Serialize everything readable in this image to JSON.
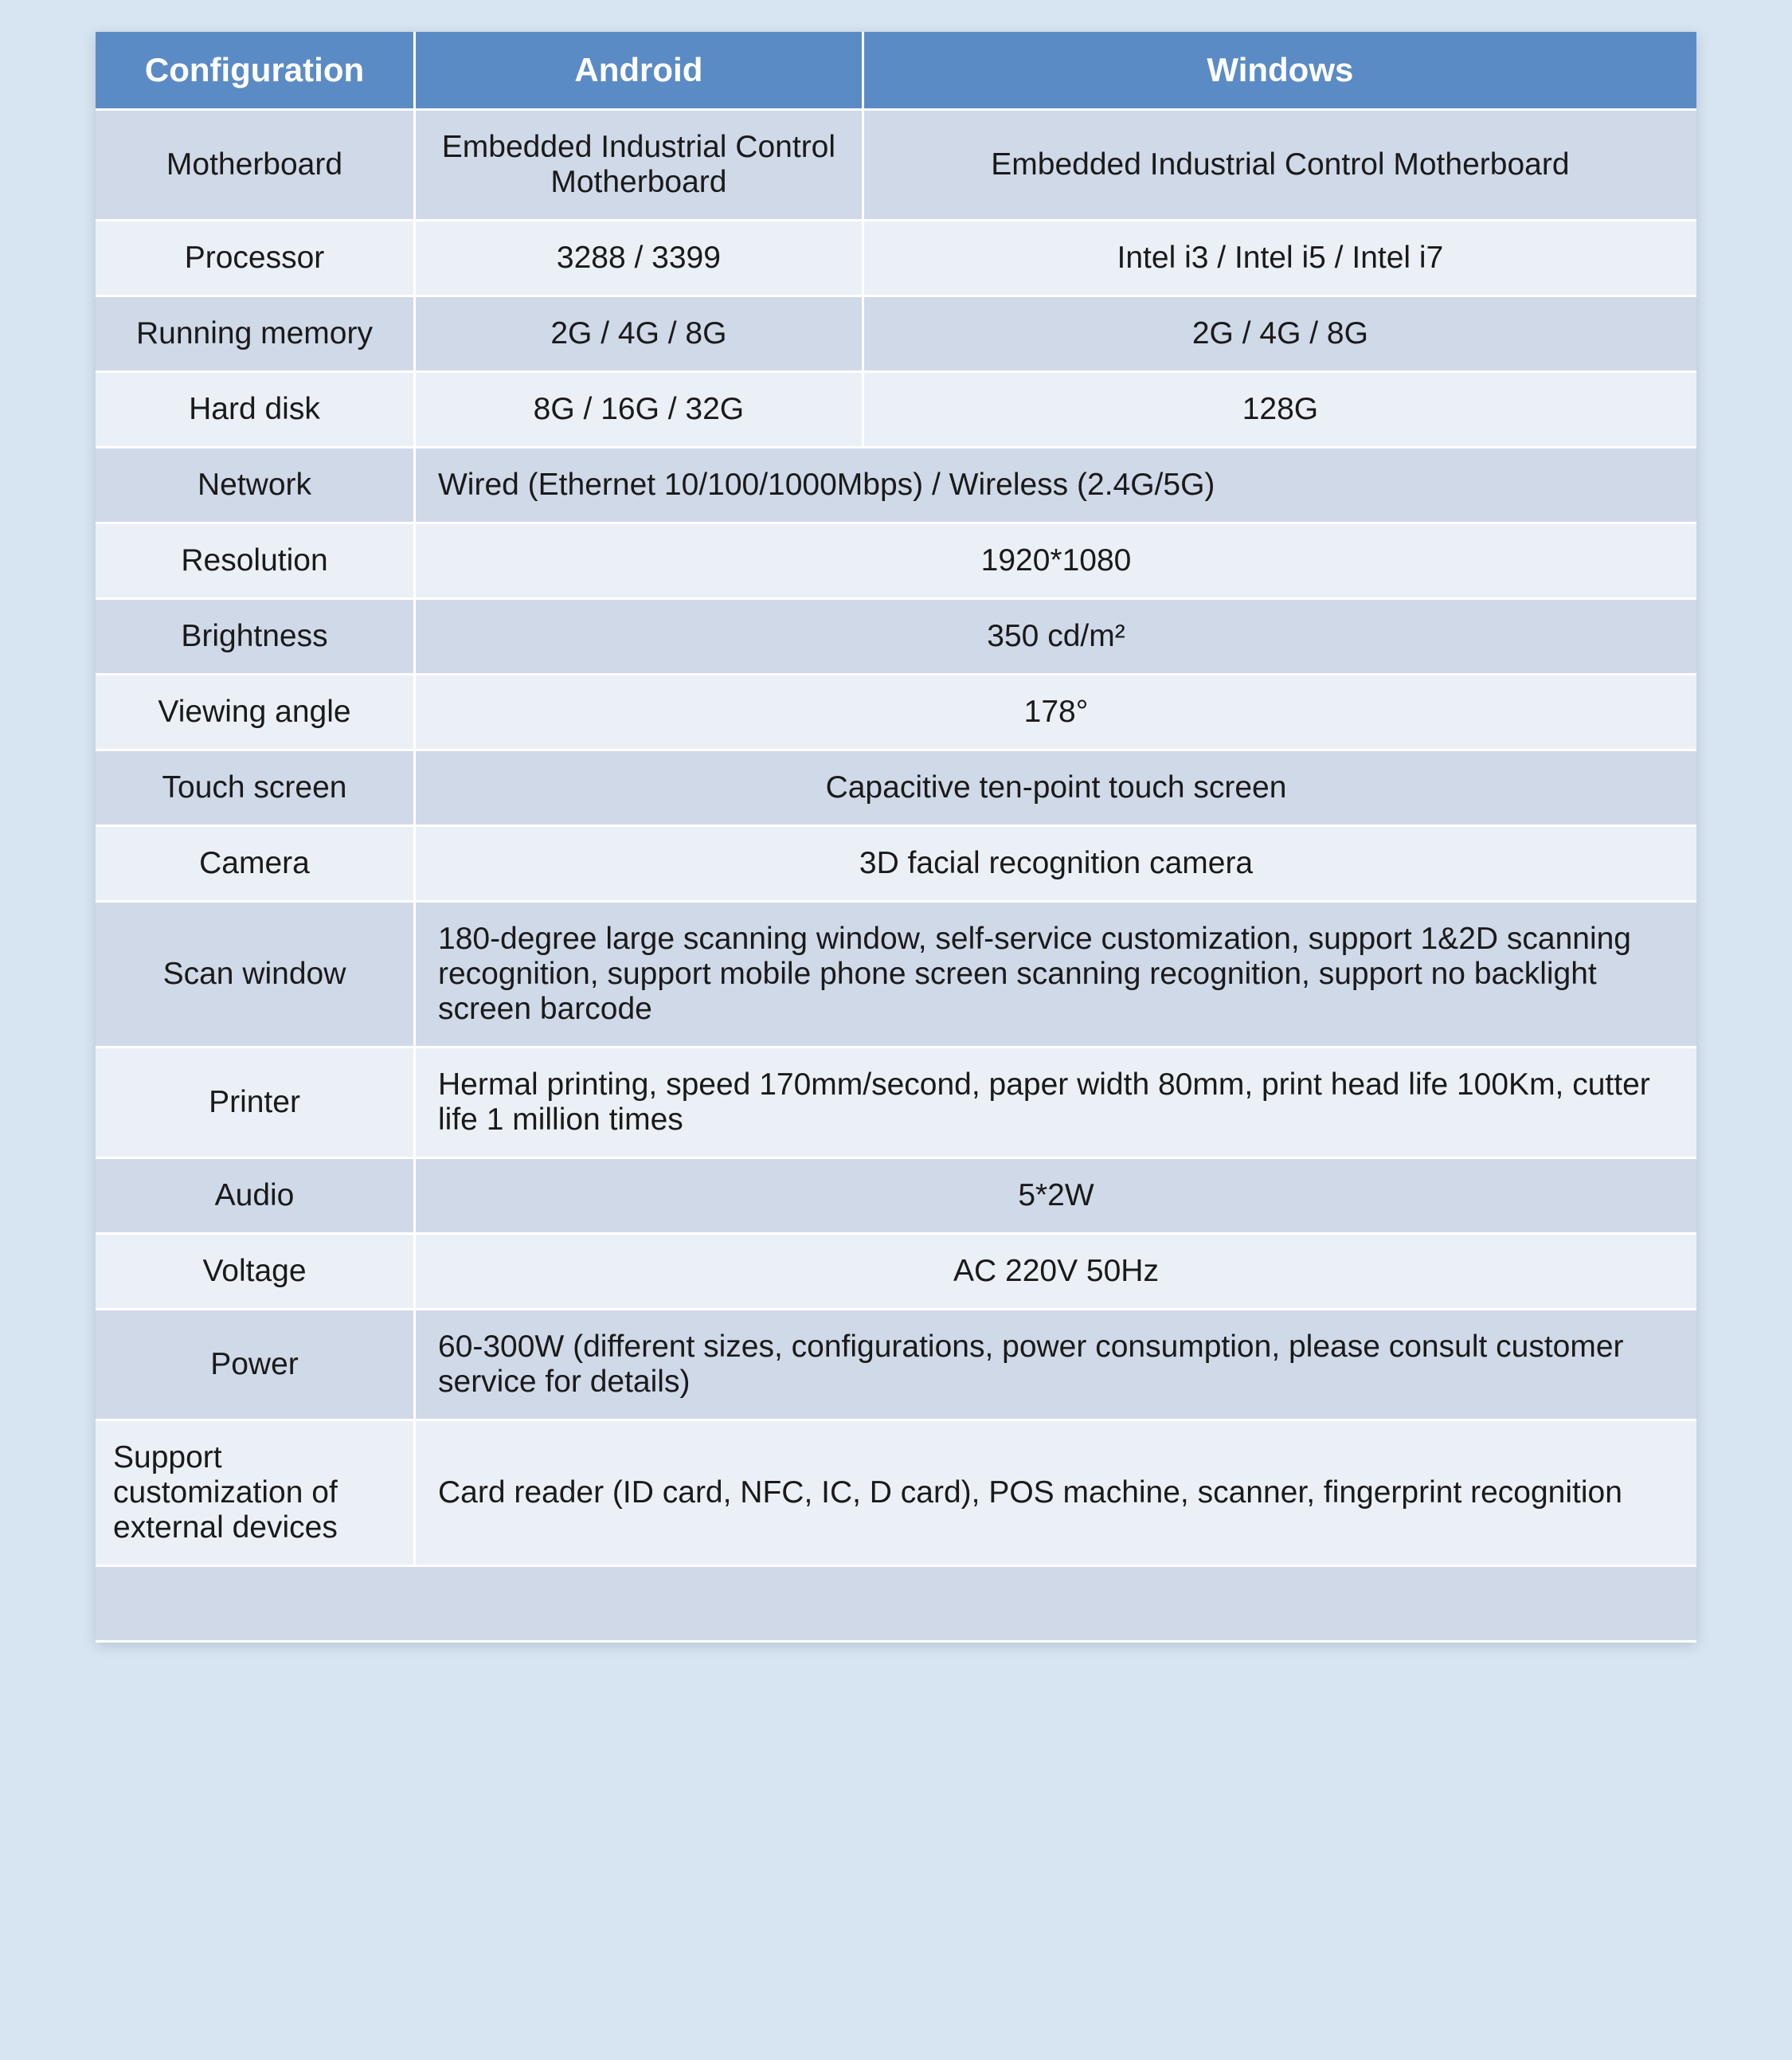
{
  "table": {
    "header_bg": "#5b8bc5",
    "header_color": "#ffffff",
    "row_even_bg": "#d0d9e8",
    "row_odd_bg": "#ebf0f7",
    "border_color": "#ffffff",
    "header_fontsize": 42,
    "cell_fontsize": 39,
    "column_widths_pct": [
      20,
      28,
      52
    ],
    "columns": [
      "Configuration",
      "Android",
      "Windows"
    ],
    "rows": [
      {
        "type": "triple",
        "label": "Motherboard",
        "android": "Embedded Industrial Control Motherboard",
        "windows": "Embedded Industrial Control Motherboard"
      },
      {
        "type": "triple",
        "label": "Processor",
        "android": "3288  /  3399",
        "windows": "Intel  i3  /  Intel  i5  /  Intel  i7"
      },
      {
        "type": "triple",
        "label": "Running memory",
        "android": "2G / 4G / 8G",
        "windows": "2G / 4G / 8G"
      },
      {
        "type": "triple",
        "label": "Hard disk",
        "android": "8G / 16G / 32G",
        "windows": "128G"
      },
      {
        "type": "merged-left",
        "label": "Network",
        "value": "Wired (Ethernet 10/100/1000Mbps) / Wireless (2.4G/5G)"
      },
      {
        "type": "merged-center",
        "label": "Resolution",
        "value": "1920*1080"
      },
      {
        "type": "merged-center",
        "label": "Brightness",
        "value": "350  cd/m²"
      },
      {
        "type": "merged-center",
        "label": "Viewing angle",
        "value": "178°"
      },
      {
        "type": "merged-center",
        "label": "Touch screen",
        "value": "Capacitive ten-point touch screen"
      },
      {
        "type": "merged-center",
        "label": "Camera",
        "value": "3D facial recognition camera"
      },
      {
        "type": "merged-left",
        "label": "Scan window",
        "value": "180-degree large scanning window, self-service customization, support 1&2D scanning recognition, support mobile phone screen scanning recognition, support no backlight screen barcode"
      },
      {
        "type": "merged-left",
        "label": "Printer",
        "value": "Hermal printing, speed 170mm/second, paper width 80mm, print head life 100Km, cutter life 1 million times"
      },
      {
        "type": "merged-center",
        "label": "Audio",
        "value": "5*2W"
      },
      {
        "type": "merged-center",
        "label": "Voltage",
        "value": "AC 220V 50Hz"
      },
      {
        "type": "merged-left",
        "label": "Power",
        "value": "60-300W   (different sizes, configurations, power consumption, please consult customer service for details)"
      },
      {
        "type": "merged-left",
        "label": "Support customization of external devices",
        "label_align": "left",
        "value": "Card reader (ID card, NFC, IC, D card), POS machine, scanner, fingerprint recognition"
      },
      {
        "type": "empty"
      }
    ]
  },
  "page": {
    "background_color": "#d7e5f3"
  }
}
